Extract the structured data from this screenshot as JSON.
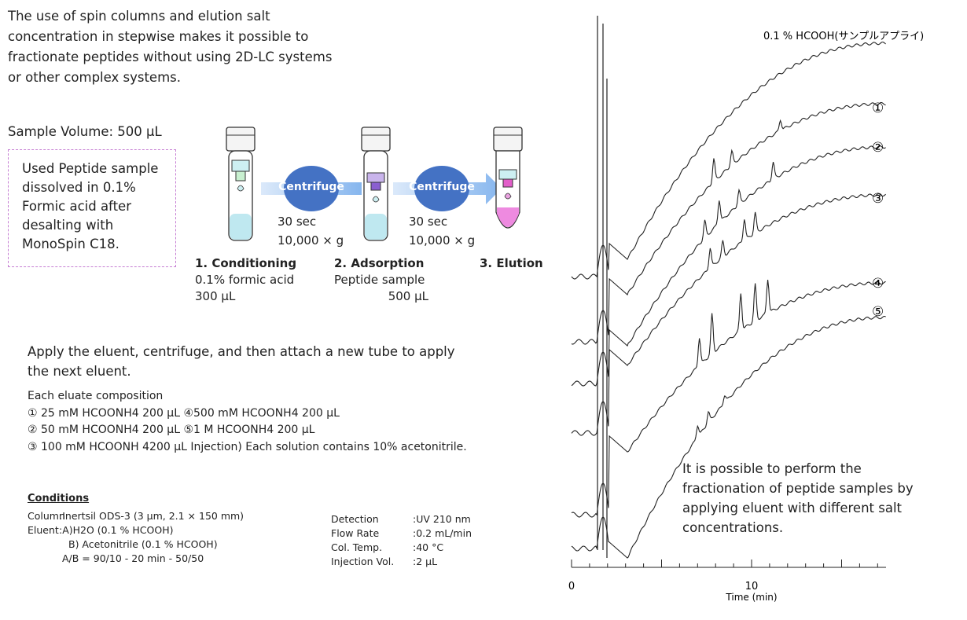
{
  "intro_text": "The use of spin columns and elution salt concentration in stepwise makes it possible to fractionate peptides without using 2D-LC systems or other complex systems.",
  "sample_volume": "Sample Volume: 500 µL",
  "sample_box": "Used Peptide sample dissolved in 0.1% Formic acid after desalting with MonoSpin C18.",
  "centrifuge_label": "Centrifuge",
  "spin_time_1": "30 sec",
  "spin_force_1": "10,000 × g",
  "spin_time_2": "30 sec",
  "spin_force_2": "10,000 × g",
  "steps": [
    {
      "title": "1. Conditioning",
      "line1": "0.1% formic acid",
      "line2": "300 µL"
    },
    {
      "title": "2. Adsorption",
      "line1": "Peptide sample",
      "line2": "500 µL"
    },
    {
      "title": "3. Elution"
    }
  ],
  "apply_text": "Apply the eluent, centrifuge, and then attach a new tube to apply the next eluent.",
  "eluates": {
    "header": "Each eluate composition",
    "line1": "① 25 mM HCOONH4 200 µL ④500 mM HCOONH4 200 µL",
    "line2": "② 50 mM HCOONH4 200 µL ⑤1 M HCOONH4 200 µL",
    "line3": "③ 100 mM HCOONH 4200 µL Injection) Each solution contains 10% acetonitrile."
  },
  "conditions": {
    "header": "Conditions",
    "column_label": "Column",
    "column_value": ":Inertsil ODS-3 (3 µm, 2.1 × 150 mm)",
    "eluent_label": "Eluent",
    "eluent_a": ":A)H2O (0.1 % HCOOH)",
    "eluent_b": "B) Acetonitrile (0.1 % HCOOH)",
    "gradient": "A/B = 90/10 - 20 min - 50/50",
    "detection_label": "Detection",
    "detection_value": ":UV 210 nm",
    "flow_label": "Flow Rate",
    "flow_value": ":0.2 mL/min",
    "temp_label": "Col. Temp.",
    "temp_value": ":40 °C",
    "inj_label": "Injection Vol.",
    "inj_value": ":2 µL"
  },
  "conclusion": "It is possible to perform the fractionation of peptide samples by applying eluent with different salt concentrations.",
  "chart_data": {
    "type": "line",
    "xlabel": "Time (min)",
    "x_ticks": [
      0,
      10
    ],
    "xlim": [
      0,
      17.5
    ],
    "series": [
      {
        "name": "0.1 % HCOOH(サンプルアプライ)"
      },
      {
        "name": "①"
      },
      {
        "name": "②"
      },
      {
        "name": "③"
      },
      {
        "name": "④"
      },
      {
        "name": "⑤"
      }
    ]
  }
}
